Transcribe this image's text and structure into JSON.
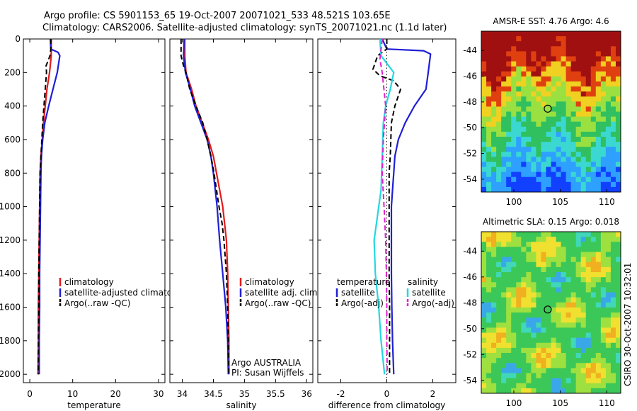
{
  "header": {
    "line1": "Argo profile: CS 5901153_65 19-Oct-2007 20071021_533 48.521S 103.65E",
    "line2": "Climatology: CARS2006. Satellite-adjusted climatology: synTS_20071021.nc (1.1d later)"
  },
  "credit": "CSIRO 30-Oct-2007 10:32:01",
  "colors": {
    "climatology": "#e41a1c",
    "satellite": "#1f1fd6",
    "argo": "#000000",
    "satellite_salinity": "#22d8e0",
    "argo_salinity": "#e020d0"
  },
  "chart_data": [
    {
      "type": "line",
      "id": "temperature",
      "xlabel": "temperature",
      "xlim": [
        -1.5,
        31.5
      ],
      "ylim": [
        0,
        2050
      ],
      "y_reversed": true,
      "xticks": [
        0,
        10,
        20,
        30
      ],
      "yticks": [
        0,
        200,
        400,
        600,
        800,
        1000,
        1200,
        1400,
        1600,
        1800,
        2000
      ],
      "legend": [
        "climatology",
        "satellite-adjusted climatology",
        "Argo(..raw -QC)"
      ],
      "series": [
        {
          "name": "climatology",
          "style": "solid",
          "color": "#e41a1c",
          "points": [
            [
              5.0,
              0
            ],
            [
              5.0,
              60
            ],
            [
              5.0,
              100
            ],
            [
              4.6,
              200
            ],
            [
              4.0,
              300
            ],
            [
              3.6,
              400
            ],
            [
              3.2,
              500
            ],
            [
              2.9,
              600
            ],
            [
              2.6,
              700
            ],
            [
              2.4,
              800
            ],
            [
              2.3,
              1000
            ],
            [
              2.2,
              1200
            ],
            [
              2.1,
              1400
            ],
            [
              2.0,
              1600
            ],
            [
              2.0,
              1800
            ],
            [
              1.9,
              2000
            ]
          ]
        },
        {
          "name": "satellite-adjusted climatology",
          "style": "solid",
          "color": "#1f1fd6",
          "points": [
            [
              4.8,
              0
            ],
            [
              4.9,
              60
            ],
            [
              6.6,
              80
            ],
            [
              7.0,
              100
            ],
            [
              6.4,
              200
            ],
            [
              5.4,
              300
            ],
            [
              4.4,
              400
            ],
            [
              3.5,
              500
            ],
            [
              3.0,
              600
            ],
            [
              2.7,
              700
            ],
            [
              2.6,
              800
            ],
            [
              2.5,
              1000
            ],
            [
              2.4,
              1200
            ],
            [
              2.3,
              1400
            ],
            [
              2.3,
              1600
            ],
            [
              2.2,
              1800
            ],
            [
              2.2,
              2000
            ]
          ]
        },
        {
          "name": "Argo(..raw -QC)",
          "style": "dashed",
          "color": "#000000",
          "points": [
            [
              4.9,
              0
            ],
            [
              4.9,
              60
            ],
            [
              4.7,
              100
            ],
            [
              3.8,
              160
            ],
            [
              3.9,
              200
            ],
            [
              3.6,
              300
            ],
            [
              3.3,
              400
            ],
            [
              3.0,
              500
            ],
            [
              2.8,
              600
            ],
            [
              2.6,
              700
            ],
            [
              2.4,
              800
            ],
            [
              2.3,
              1000
            ],
            [
              2.2,
              1200
            ],
            [
              2.1,
              1400
            ],
            [
              2.1,
              1600
            ],
            [
              2.0,
              1800
            ],
            [
              2.0,
              2000
            ]
          ]
        }
      ]
    },
    {
      "type": "line",
      "id": "salinity",
      "xlabel": "salinity",
      "xlim": [
        33.8,
        36.1
      ],
      "ylim": [
        0,
        2050
      ],
      "y_reversed": true,
      "xticks": [
        34,
        34.5,
        35,
        35.5,
        36
      ],
      "legend": [
        "climatology",
        "satellite adj. clim.",
        "Argo(..raw -QC)"
      ],
      "annotations": [
        "Argo AUSTRALIA",
        "PI: Susan Wijffels"
      ],
      "series": [
        {
          "name": "climatology",
          "style": "solid",
          "color": "#e41a1c",
          "points": [
            [
              34.04,
              0
            ],
            [
              34.04,
              100
            ],
            [
              34.06,
              200
            ],
            [
              34.15,
              300
            ],
            [
              34.22,
              400
            ],
            [
              34.32,
              500
            ],
            [
              34.42,
              600
            ],
            [
              34.5,
              700
            ],
            [
              34.55,
              800
            ],
            [
              34.6,
              900
            ],
            [
              34.65,
              1000
            ],
            [
              34.68,
              1100
            ],
            [
              34.71,
              1200
            ],
            [
              34.73,
              1400
            ],
            [
              34.74,
              1600
            ],
            [
              34.75,
              1800
            ],
            [
              34.75,
              2000
            ]
          ]
        },
        {
          "name": "satellite adj. clim.",
          "style": "solid",
          "color": "#1f1fd6",
          "points": [
            [
              34.03,
              0
            ],
            [
              34.02,
              100
            ],
            [
              34.05,
              200
            ],
            [
              34.13,
              300
            ],
            [
              34.2,
              400
            ],
            [
              34.3,
              500
            ],
            [
              34.4,
              600
            ],
            [
              34.46,
              700
            ],
            [
              34.5,
              800
            ],
            [
              34.53,
              900
            ],
            [
              34.56,
              1000
            ],
            [
              34.6,
              1200
            ],
            [
              34.65,
              1400
            ],
            [
              34.7,
              1600
            ],
            [
              34.73,
              1800
            ],
            [
              34.74,
              2000
            ]
          ]
        },
        {
          "name": "Argo(..raw -QC)",
          "style": "dashed",
          "color": "#000000",
          "points": [
            [
              33.98,
              0
            ],
            [
              33.98,
              100
            ],
            [
              34.02,
              160
            ],
            [
              34.06,
              200
            ],
            [
              34.12,
              300
            ],
            [
              34.22,
              400
            ],
            [
              34.33,
              500
            ],
            [
              34.4,
              600
            ],
            [
              34.46,
              700
            ],
            [
              34.51,
              800
            ],
            [
              34.55,
              900
            ],
            [
              34.59,
              1000
            ],
            [
              34.64,
              1100
            ],
            [
              34.67,
              1200
            ],
            [
              34.71,
              1400
            ],
            [
              34.73,
              1600
            ],
            [
              34.74,
              1800
            ],
            [
              34.75,
              2000
            ]
          ]
        }
      ]
    },
    {
      "type": "line",
      "id": "difference",
      "xlabel": "difference from climatology",
      "xlim": [
        -3.0,
        3.0
      ],
      "ylim": [
        0,
        2050
      ],
      "y_reversed": true,
      "xticks": [
        -2,
        0,
        2
      ],
      "legend_temperature": [
        "temperature",
        "satellite",
        "Argo(-adj)"
      ],
      "legend_salinity": [
        "salinity",
        "satellite",
        "Argo(-adj)"
      ],
      "series": [
        {
          "name": "temperature satellite",
          "style": "solid",
          "color": "#1f1fd6",
          "points": [
            [
              -0.2,
              0
            ],
            [
              0.0,
              60
            ],
            [
              1.6,
              70
            ],
            [
              1.9,
              90
            ],
            [
              1.8,
              200
            ],
            [
              1.7,
              300
            ],
            [
              1.2,
              400
            ],
            [
              0.8,
              500
            ],
            [
              0.5,
              600
            ],
            [
              0.35,
              700
            ],
            [
              0.3,
              800
            ],
            [
              0.25,
              900
            ],
            [
              0.2,
              1000
            ],
            [
              0.2,
              1200
            ],
            [
              0.2,
              1400
            ],
            [
              0.22,
              1600
            ],
            [
              0.25,
              1800
            ],
            [
              0.3,
              2000
            ]
          ]
        },
        {
          "name": "temperature Argo(-adj)",
          "style": "dashed",
          "color": "#000000",
          "points": [
            [
              0.0,
              0
            ],
            [
              0.0,
              60
            ],
            [
              -0.4,
              100
            ],
            [
              -0.6,
              180
            ],
            [
              -0.3,
              220
            ],
            [
              0.3,
              250
            ],
            [
              0.6,
              300
            ],
            [
              0.35,
              400
            ],
            [
              0.2,
              500
            ],
            [
              0.15,
              700
            ],
            [
              0.1,
              800
            ],
            [
              0.1,
              1000
            ],
            [
              0.1,
              1200
            ],
            [
              0.1,
              1400
            ],
            [
              0.12,
              1600
            ],
            [
              0.12,
              1800
            ],
            [
              0.12,
              2000
            ]
          ]
        },
        {
          "name": "salinity satellite",
          "style": "solid",
          "color": "#22d8e0",
          "points": [
            [
              -0.3,
              0
            ],
            [
              -0.25,
              100
            ],
            [
              0.3,
              200
            ],
            [
              0.15,
              300
            ],
            [
              -0.05,
              400
            ],
            [
              -0.15,
              500
            ],
            [
              -0.2,
              700
            ],
            [
              -0.25,
              900
            ],
            [
              -0.35,
              1000
            ],
            [
              -0.45,
              1100
            ],
            [
              -0.55,
              1200
            ],
            [
              -0.5,
              1400
            ],
            [
              -0.35,
              1600
            ],
            [
              -0.25,
              1800
            ],
            [
              -0.1,
              2000
            ]
          ]
        },
        {
          "name": "salinity Argo(-adj)",
          "style": "dashed",
          "color": "#e020d0",
          "points": [
            [
              -0.2,
              0
            ],
            [
              -0.3,
              120
            ],
            [
              -0.2,
              200
            ],
            [
              -0.05,
              400
            ],
            [
              -0.15,
              600
            ],
            [
              -0.2,
              800
            ],
            [
              -0.12,
              1000
            ],
            [
              -0.05,
              1200
            ],
            [
              -0.02,
              1400
            ],
            [
              0.0,
              1600
            ],
            [
              0.0,
              1800
            ],
            [
              0.02,
              2000
            ]
          ]
        }
      ]
    },
    {
      "type": "heatmap",
      "id": "amsre-sst",
      "title": "AMSR-E SST: 4.76 Argo: 4.6",
      "xlim": [
        96.5,
        111.5
      ],
      "ylim": [
        -55,
        -42.5
      ],
      "xticks": [
        100,
        105,
        110
      ],
      "yticks": [
        -44,
        -46,
        -48,
        -50,
        -52,
        -54
      ],
      "marker": {
        "lon": 103.65,
        "lat": -48.521
      }
    },
    {
      "type": "heatmap",
      "id": "altimetric-sla",
      "title": "Altimetric SLA: 0.15 Argo: 0.018",
      "xlim": [
        96.5,
        111.5
      ],
      "ylim": [
        -55,
        -42.5
      ],
      "xticks": [
        100,
        105,
        110
      ],
      "yticks": [
        -44,
        -46,
        -48,
        -50,
        -52,
        -54
      ],
      "marker": {
        "lon": 103.65,
        "lat": -48.521
      }
    }
  ]
}
